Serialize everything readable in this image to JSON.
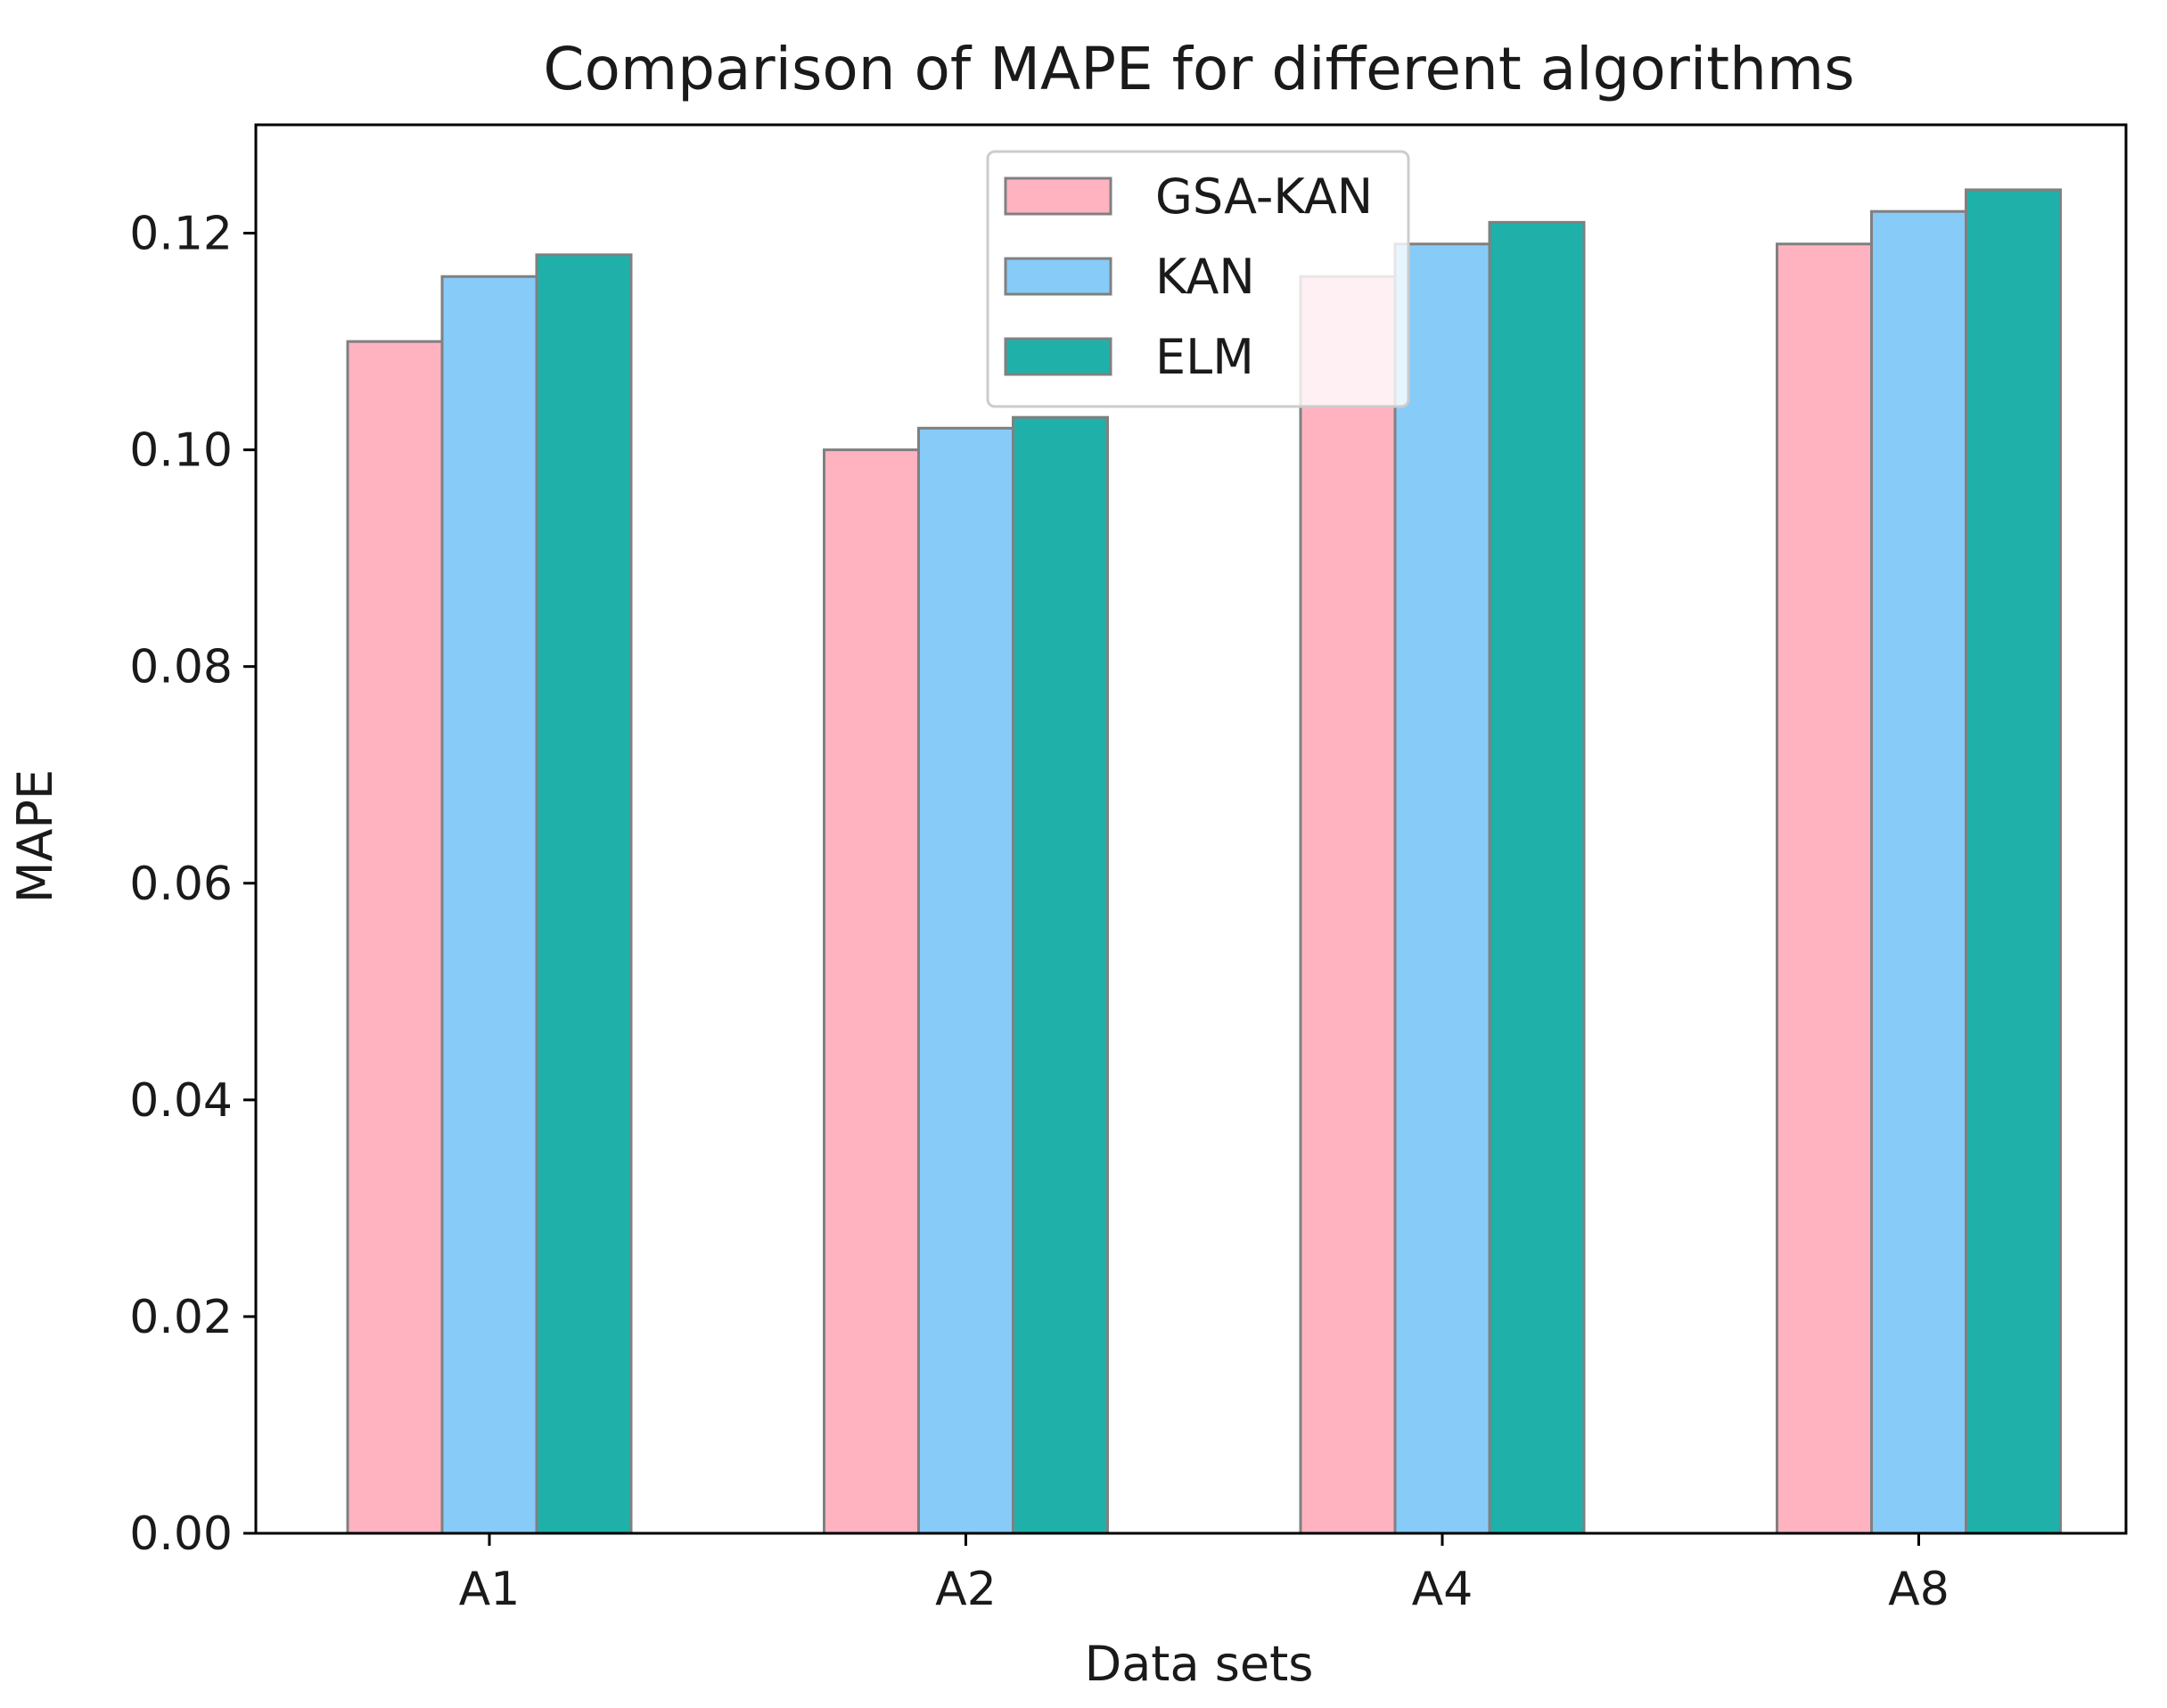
{
  "chart_data": {
    "type": "bar",
    "title": "Comparison of MAPE for different algorithms",
    "xlabel": "Data sets",
    "ylabel": "MAPE",
    "categories": [
      "A1",
      "A2",
      "A4",
      "A8"
    ],
    "series": [
      {
        "name": "GSA-KAN",
        "color": "#ffb3c1",
        "values": [
          0.11,
          0.1,
          0.116,
          0.119
        ]
      },
      {
        "name": "KAN",
        "color": "#87cbf9",
        "values": [
          0.116,
          0.102,
          0.119,
          0.122
        ]
      },
      {
        "name": "ELM",
        "color": "#20b0aa",
        "values": [
          0.118,
          0.103,
          0.121,
          0.124
        ]
      }
    ],
    "ylim": [
      0,
      0.13
    ],
    "yticks": [
      "0.00",
      "0.02",
      "0.04",
      "0.06",
      "0.08",
      "0.10",
      "0.12"
    ],
    "ytick_values": [
      0,
      0.02,
      0.04,
      0.06,
      0.08,
      0.1,
      0.12
    ],
    "grid": false,
    "legend_position": "top-center"
  }
}
